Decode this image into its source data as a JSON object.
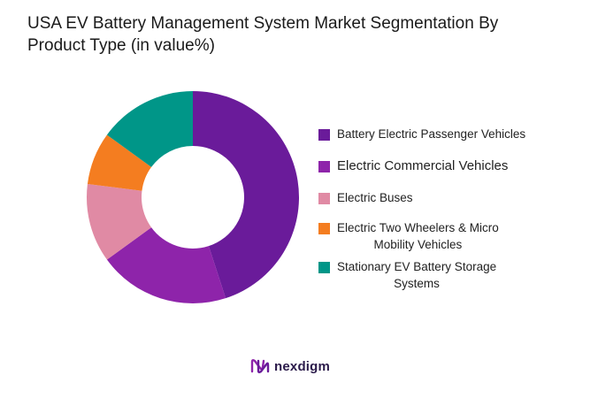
{
  "chart_data": {
    "type": "pie",
    "title": "USA EV Battery Management System Market Segmentation By Product Type (in value%)",
    "categories": [
      "Battery Electric Passenger Vehicles",
      "Electric Commercial Vehicles",
      "Electric Buses",
      "Electric Two Wheelers & Micro Mobility Vehicles",
      "Stationary EV Battery Storage Systems"
    ],
    "values": [
      45,
      20,
      12,
      8,
      15
    ],
    "colors": [
      "#6a1b9a",
      "#8e24aa",
      "#e08aa4",
      "#f47d20",
      "#009688"
    ],
    "legend_position": "right",
    "donut": true
  },
  "legend": {
    "items": [
      {
        "label_lines": [
          "Battery Electric Passenger Vehicles"
        ],
        "color": "#6a1b9a"
      },
      {
        "label_lines": [
          "Electric Commercial Vehicles"
        ],
        "color": "#8e24aa"
      },
      {
        "label_lines": [
          "Electric Buses"
        ],
        "color": "#e08aa4"
      },
      {
        "label_lines": [
          "Electric Two Wheelers & Micro",
          "Mobility Vehicles"
        ],
        "color": "#f47d20"
      },
      {
        "label_lines": [
          "Stationary EV Battery Storage",
          "Systems"
        ],
        "color": "#009688"
      }
    ]
  },
  "branding": {
    "logo_text": "nexdigm",
    "logo_icon": "nexdigm-logo-icon"
  }
}
